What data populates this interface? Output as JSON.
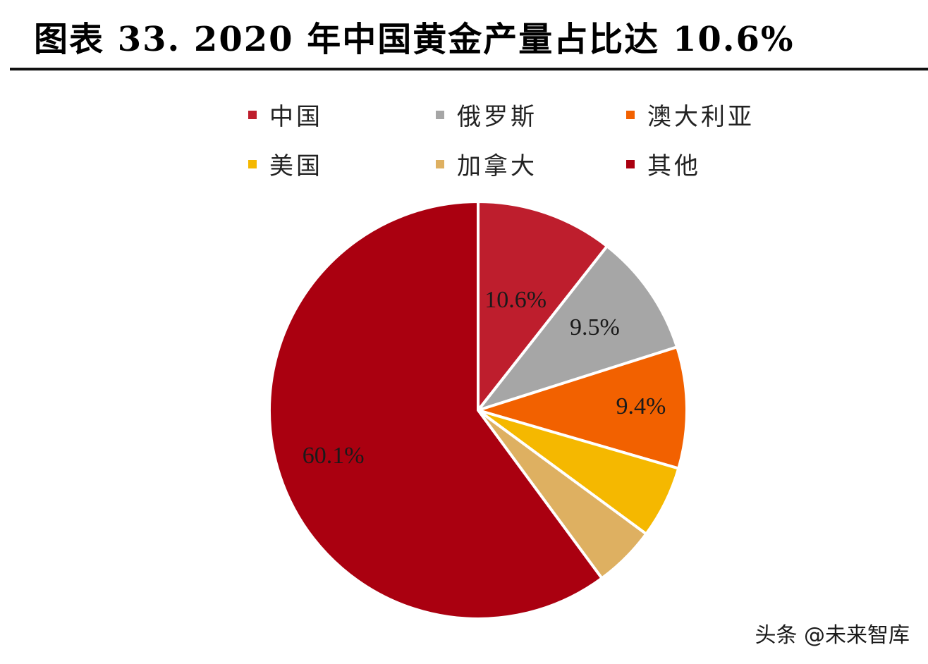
{
  "page_title": "图表 33. 2020 年中国黄金产量占比达 10.6%",
  "watermark": "头条 @未来智库",
  "chart_data": {
    "type": "pie",
    "title": "图表 33. 2020 年中国黄金产量占比达 10.6%",
    "legend_position": "top",
    "categories": [
      "中国",
      "俄罗斯",
      "澳大利亚",
      "美国",
      "加拿大",
      "其他"
    ],
    "values": [
      10.6,
      9.5,
      9.4,
      5.6,
      4.8,
      60.1
    ],
    "unit": "%",
    "colors": [
      "#be1e2d",
      "#a6a6a6",
      "#f26100",
      "#f5b800",
      "#deb061",
      "#aa0010"
    ],
    "data_labels": [
      "10.6%",
      "9.5%",
      "9.4%",
      "",
      "",
      "60.1%"
    ]
  }
}
